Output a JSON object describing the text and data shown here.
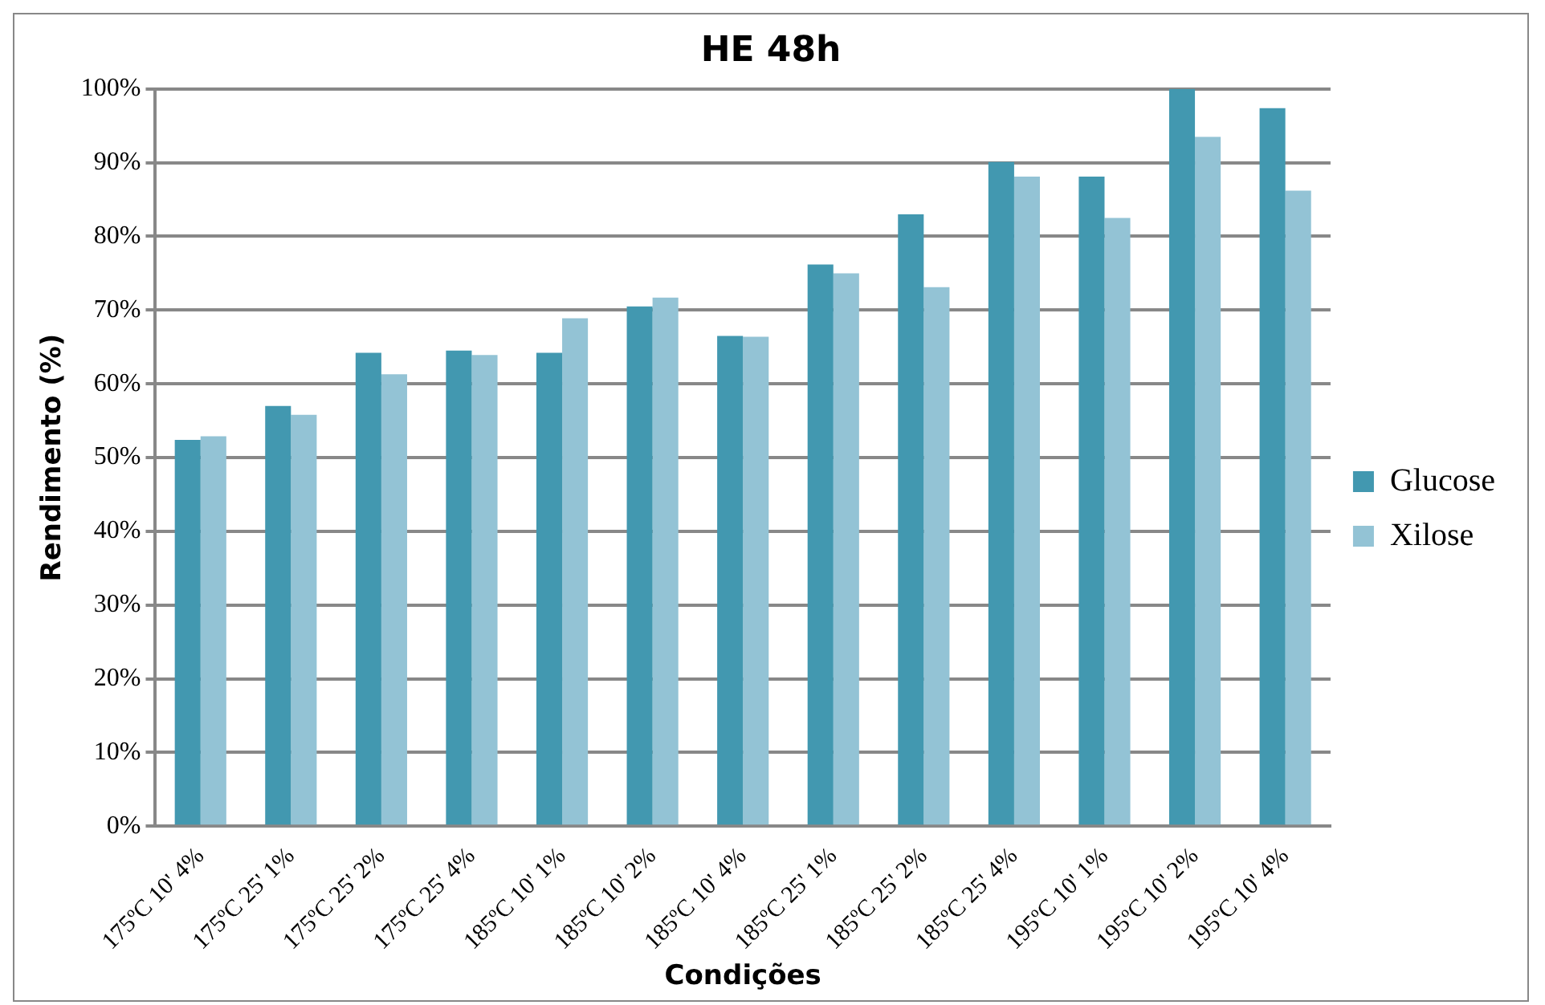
{
  "chart_data": {
    "type": "bar",
    "title": "HE 48h",
    "xlabel": "Condições",
    "ylabel": "Rendimento (%)",
    "categories": [
      "175ºC 10' 4%",
      "175ºC 25' 1%",
      "175ºC 25' 2%",
      "175ºC 25' 4%",
      "185ºC 10' 1%",
      "185ºC 10' 2%",
      "185ºC 10' 4%",
      "185ºC 25' 1%",
      "185ºC 25' 2%",
      "185ºC 25' 4%",
      "195ºC 10' 1%",
      "195ºC 10' 2%",
      "195ºC 10' 4%"
    ],
    "series": [
      {
        "name": "Glucose",
        "color": "#4298b0",
        "values": [
          52.4,
          57.0,
          64.2,
          64.5,
          64.2,
          70.5,
          66.5,
          76.2,
          83.0,
          90.1,
          88.1,
          100,
          97.4
        ]
      },
      {
        "name": "Xilose",
        "color": "#93c3d5",
        "values": [
          52.9,
          55.8,
          61.3,
          63.9,
          68.9,
          71.7,
          66.4,
          75.0,
          73.1,
          88.1,
          82.5,
          93.5,
          86.2
        ]
      }
    ],
    "ylim": [
      0,
      100
    ],
    "yticks": [
      {
        "value": 0,
        "label": "0%"
      },
      {
        "value": 10,
        "label": "10%"
      },
      {
        "value": 20,
        "label": "20%"
      },
      {
        "value": 30,
        "label": "30%"
      },
      {
        "value": 40,
        "label": "40%"
      },
      {
        "value": 50,
        "label": "50%"
      },
      {
        "value": 60,
        "label": "60%"
      },
      {
        "value": 70,
        "label": "70%"
      },
      {
        "value": 80,
        "label": "80%"
      },
      {
        "value": 90,
        "label": "90%"
      },
      {
        "value": 100,
        "label": "100%"
      }
    ],
    "grid": "y",
    "legend": "right"
  }
}
